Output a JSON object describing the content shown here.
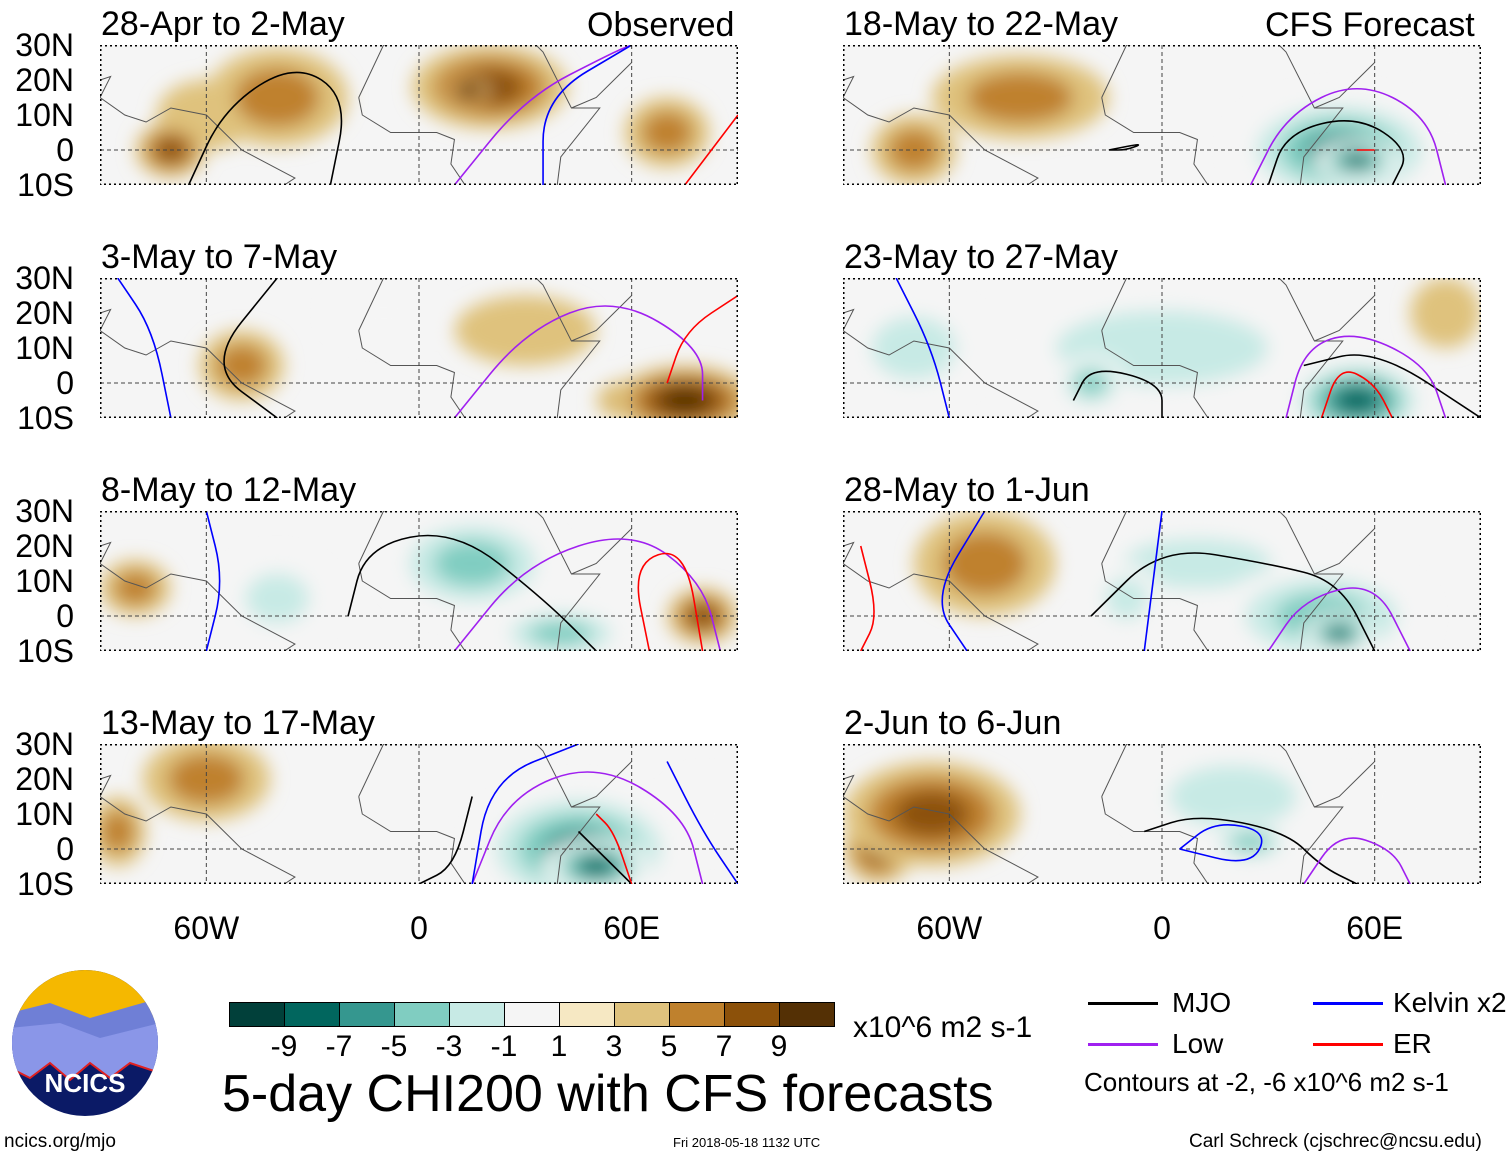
{
  "header": {
    "observed_label": "Observed",
    "forecast_label": "CFS Forecast"
  },
  "lat_labels": [
    "30N",
    "20N",
    "10N",
    "0",
    "10S"
  ],
  "lon_labels": [
    "60W",
    "0",
    "60E"
  ],
  "panels": [
    {
      "title": "28-Apr to 2-May",
      "col": 0,
      "row": 0,
      "blobs": [
        [
          -40,
          15,
          20,
          14,
          4
        ],
        [
          20,
          18,
          22,
          12,
          6
        ],
        [
          14,
          17,
          6,
          4,
          9
        ],
        [
          -70,
          0,
          10,
          8,
          5
        ],
        [
          -35,
          18,
          8,
          5,
          -3
        ],
        [
          70,
          5,
          12,
          10,
          3
        ],
        [
          -60,
          10,
          14,
          10,
          2
        ]
      ],
      "lines": [
        [
          "mjo",
          [
            [
              -65,
              -10
            ],
            [
              -55,
              12
            ],
            [
              -35,
              25
            ],
            [
              -20,
              15
            ],
            [
              -25,
              -10
            ]
          ]
        ],
        [
          "low",
          [
            [
              10,
              -10
            ],
            [
              30,
              15
            ],
            [
              55,
              28
            ],
            [
              60,
              30
            ]
          ]
        ],
        [
          "kelvin",
          [
            [
              35,
              -10
            ],
            [
              35,
              15
            ],
            [
              60,
              30
            ]
          ]
        ],
        [
          "er",
          [
            [
              75,
              -10
            ],
            [
              90,
              10
            ]
          ]
        ]
      ]
    },
    {
      "title": "3-May to 7-May",
      "col": 0,
      "row": 1,
      "blobs": [
        [
          -50,
          5,
          12,
          10,
          4
        ],
        [
          75,
          -5,
          20,
          10,
          7
        ],
        [
          60,
          -5,
          10,
          6,
          3
        ],
        [
          -10,
          20,
          15,
          8,
          -2
        ],
        [
          30,
          15,
          20,
          10,
          2
        ]
      ],
      "lines": [
        [
          "mjo",
          [
            [
              -40,
              30
            ],
            [
              -60,
              5
            ],
            [
              -40,
              -10
            ]
          ]
        ],
        [
          "low",
          [
            [
              10,
              -10
            ],
            [
              30,
              15
            ],
            [
              55,
              25
            ],
            [
              80,
              10
            ],
            [
              80,
              -5
            ]
          ]
        ],
        [
          "kelvin",
          [
            [
              -85,
              30
            ],
            [
              -75,
              15
            ],
            [
              -70,
              -10
            ]
          ]
        ],
        [
          "er",
          [
            [
              70,
              0
            ],
            [
              75,
              15
            ],
            [
              90,
              25
            ]
          ]
        ]
      ]
    },
    {
      "title": "8-May to 12-May",
      "col": 0,
      "row": 2,
      "blobs": [
        [
          15,
          15,
          25,
          15,
          -5
        ],
        [
          40,
          -5,
          20,
          8,
          -6
        ],
        [
          -40,
          5,
          15,
          12,
          -3
        ],
        [
          -80,
          8,
          10,
          8,
          4
        ],
        [
          80,
          0,
          10,
          8,
          5
        ]
      ],
      "lines": [
        [
          "mjo",
          [
            [
              -20,
              0
            ],
            [
              -15,
              20
            ],
            [
              10,
              25
            ],
            [
              35,
              5
            ],
            [
              50,
              -10
            ]
          ]
        ],
        [
          "low",
          [
            [
              10,
              -10
            ],
            [
              30,
              15
            ],
            [
              60,
              25
            ],
            [
              80,
              10
            ],
            [
              85,
              -10
            ]
          ]
        ],
        [
          "kelvin",
          [
            [
              -60,
              30
            ],
            [
              -55,
              10
            ],
            [
              -60,
              -10
            ]
          ]
        ],
        [
          "er",
          [
            [
              65,
              -10
            ],
            [
              60,
              15
            ],
            [
              75,
              20
            ],
            [
              80,
              -10
            ]
          ]
        ]
      ]
    },
    {
      "title": "13-May to 17-May",
      "col": 0,
      "row": 3,
      "blobs": [
        [
          45,
          0,
          30,
          18,
          -8
        ],
        [
          50,
          -5,
          15,
          8,
          -10
        ],
        [
          -60,
          20,
          18,
          12,
          3
        ],
        [
          -85,
          5,
          8,
          10,
          3
        ],
        [
          80,
          10,
          10,
          10,
          -2
        ]
      ],
      "lines": [
        [
          "mjo",
          [
            [
              15,
              15
            ],
            [
              10,
              -5
            ],
            [
              0,
              -10
            ]
          ]
        ],
        [
          "mjo",
          [
            [
              45,
              5
            ],
            [
              60,
              -10
            ]
          ]
        ],
        [
          "low",
          [
            [
              15,
              -10
            ],
            [
              25,
              15
            ],
            [
              50,
              25
            ],
            [
              75,
              10
            ],
            [
              80,
              -10
            ]
          ]
        ],
        [
          "kelvin",
          [
            [
              15,
              -10
            ],
            [
              20,
              20
            ],
            [
              45,
              30
            ]
          ]
        ],
        [
          "kelvin",
          [
            [
              70,
              25
            ],
            [
              80,
              5
            ],
            [
              90,
              -10
            ]
          ]
        ],
        [
          "er",
          [
            [
              50,
              10
            ],
            [
              55,
              5
            ],
            [
              60,
              -10
            ]
          ]
        ]
      ]
    },
    {
      "title": "18-May to 22-May",
      "col": 1,
      "row": 0,
      "blobs": [
        [
          50,
          0,
          30,
          16,
          -7
        ],
        [
          55,
          -3,
          12,
          6,
          -10
        ],
        [
          -40,
          15,
          25,
          12,
          3
        ],
        [
          -70,
          0,
          12,
          10,
          3
        ],
        [
          85,
          10,
          10,
          12,
          -2
        ]
      ],
      "lines": [
        [
          "mjo",
          [
            [
              30,
              -10
            ],
            [
              35,
              5
            ],
            [
              55,
              10
            ],
            [
              70,
              0
            ],
            [
              65,
              -10
            ]
          ]
        ],
        [
          "mjo",
          [
            [
              -15,
              0
            ],
            [
              -5,
              2
            ],
            [
              -10,
              0
            ],
            [
              -15,
              0
            ]
          ]
        ],
        [
          "low",
          [
            [
              25,
              -10
            ],
            [
              35,
              10
            ],
            [
              55,
              20
            ],
            [
              75,
              10
            ],
            [
              80,
              -10
            ]
          ]
        ],
        [
          "er",
          [
            [
              55,
              0
            ],
            [
              60,
              0
            ]
          ]
        ]
      ]
    },
    {
      "title": "23-May to 27-May",
      "col": 1,
      "row": 1,
      "blobs": [
        [
          55,
          -5,
          20,
          12,
          -9
        ],
        [
          0,
          10,
          50,
          18,
          -3
        ],
        [
          -20,
          0,
          10,
          8,
          -5
        ],
        [
          -70,
          10,
          20,
          15,
          -3
        ],
        [
          80,
          20,
          10,
          10,
          2
        ]
      ],
      "lines": [
        [
          "mjo",
          [
            [
              -25,
              -5
            ],
            [
              -20,
              5
            ],
            [
              0,
              0
            ],
            [
              0,
              -10
            ]
          ]
        ],
        [
          "mjo",
          [
            [
              40,
              5
            ],
            [
              60,
              10
            ],
            [
              90,
              -10
            ]
          ]
        ],
        [
          "low",
          [
            [
              35,
              -10
            ],
            [
              40,
              10
            ],
            [
              55,
              15
            ],
            [
              75,
              5
            ],
            [
              80,
              -10
            ]
          ]
        ],
        [
          "kelvin",
          [
            [
              -75,
              30
            ],
            [
              -65,
              10
            ],
            [
              -60,
              -10
            ]
          ]
        ],
        [
          "er",
          [
            [
              45,
              -10
            ],
            [
              50,
              5
            ],
            [
              60,
              0
            ],
            [
              65,
              -10
            ]
          ]
        ]
      ]
    },
    {
      "title": "28-May to 1-Jun",
      "col": 1,
      "row": 2,
      "blobs": [
        [
          45,
          0,
          30,
          15,
          -6
        ],
        [
          50,
          -5,
          10,
          6,
          -9
        ],
        [
          10,
          15,
          35,
          12,
          -3
        ],
        [
          -50,
          15,
          20,
          15,
          3
        ],
        [
          -10,
          5,
          10,
          10,
          -3
        ]
      ],
      "lines": [
        [
          "mjo",
          [
            [
              -20,
              0
            ],
            [
              0,
              20
            ],
            [
              30,
              15
            ],
            [
              50,
              10
            ],
            [
              60,
              -10
            ]
          ]
        ],
        [
          "low",
          [
            [
              30,
              -10
            ],
            [
              40,
              5
            ],
            [
              60,
              10
            ],
            [
              70,
              -10
            ]
          ]
        ],
        [
          "kelvin",
          [
            [
              -50,
              30
            ],
            [
              -65,
              5
            ],
            [
              -55,
              -10
            ]
          ]
        ],
        [
          "kelvin",
          [
            [
              0,
              30
            ],
            [
              -5,
              -10
            ]
          ]
        ],
        [
          "er",
          [
            [
              -85,
              20
            ],
            [
              -80,
              0
            ],
            [
              -85,
              -10
            ]
          ]
        ]
      ]
    },
    {
      "title": "2-Jun to 6-Jun",
      "col": 1,
      "row": 3,
      "blobs": [
        [
          -65,
          10,
          25,
          15,
          6
        ],
        [
          -80,
          0,
          10,
          10,
          5
        ],
        [
          20,
          15,
          30,
          15,
          -3
        ],
        [
          25,
          2,
          12,
          6,
          -5
        ],
        [
          70,
          15,
          15,
          10,
          -2
        ]
      ],
      "lines": [
        [
          "mjo",
          [
            [
              -5,
              5
            ],
            [
              10,
              10
            ],
            [
              35,
              5
            ],
            [
              45,
              -5
            ],
            [
              55,
              -10
            ]
          ]
        ],
        [
          "kelvin",
          [
            [
              5,
              0
            ],
            [
              15,
              8
            ],
            [
              30,
              5
            ],
            [
              25,
              -5
            ],
            [
              5,
              0
            ]
          ]
        ],
        [
          "low",
          [
            [
              40,
              -10
            ],
            [
              50,
              5
            ],
            [
              65,
              0
            ],
            [
              70,
              -10
            ]
          ]
        ]
      ]
    }
  ],
  "colorbar": {
    "colors": [
      "#01403a",
      "#01665e",
      "#35978f",
      "#80cdc1",
      "#c7eae5",
      "#f5f5f5",
      "#f6e8c3",
      "#dfc27d",
      "#bf812d",
      "#8c510a",
      "#543005"
    ],
    "ticks": [
      "-9",
      "-7",
      "-5",
      "-3",
      "-1",
      "1",
      "3",
      "5",
      "7",
      "9"
    ],
    "units": "x10^6 m2 s-1"
  },
  "title": "5-day CHI200 with CFS forecasts",
  "legend": {
    "items": [
      {
        "label": "MJO",
        "color": "#000000"
      },
      {
        "label": "Kelvin x2",
        "color": "#0000ff"
      },
      {
        "label": "Low",
        "color": "#a020f0"
      },
      {
        "label": "ER",
        "color": "#ff0000"
      }
    ],
    "contours": "Contours at -2, -6 x10^6 m2 s-1"
  },
  "footer": {
    "url": "ncics.org/mjo",
    "timestamp": "Fri 2018-05-18 1132 UTC",
    "author": "Carl Schreck (cjschrec@ncsu.edu)",
    "logo_text": "NCICS"
  }
}
